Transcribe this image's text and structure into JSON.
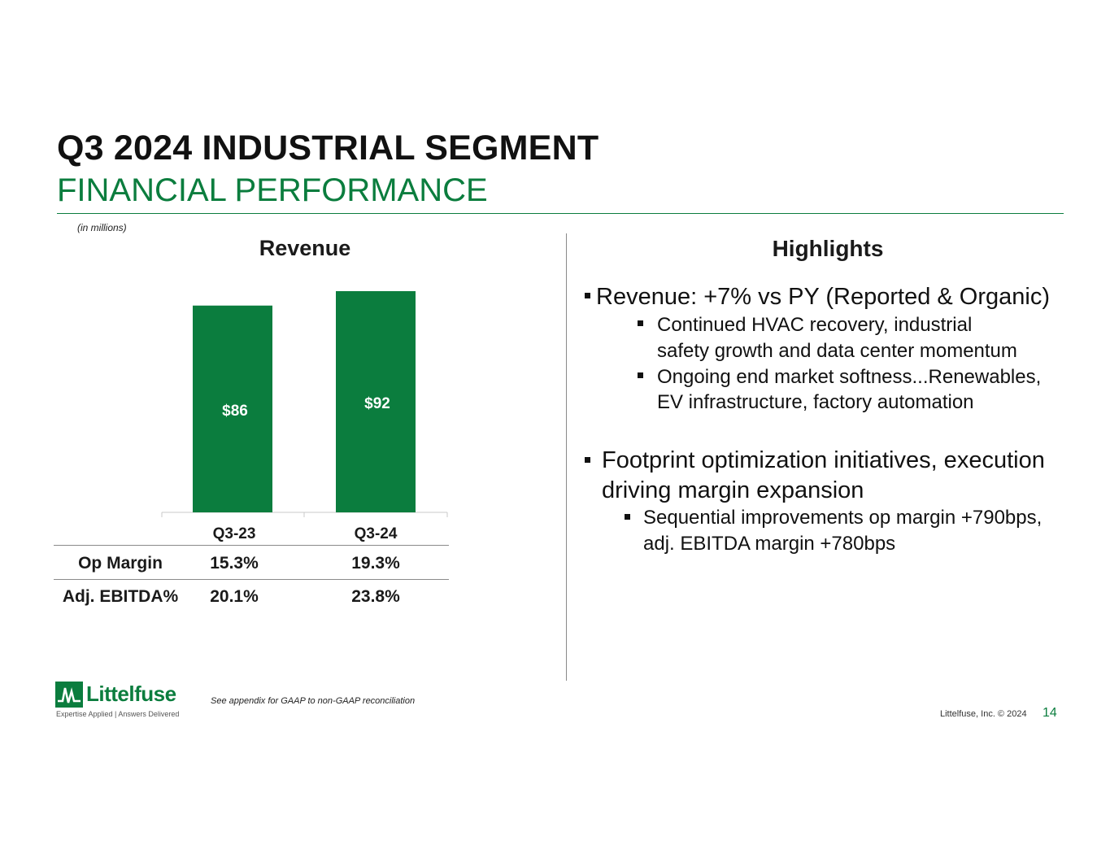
{
  "header": {
    "title": "Q3 2024 INDUSTRIAL SEGMENT",
    "subtitle": "FINANCIAL PERFORMANCE",
    "units_note": "(in millions)"
  },
  "chart_data": {
    "type": "bar",
    "title": "Revenue",
    "categories": [
      "Q3-23",
      "Q3-24"
    ],
    "values": [
      86,
      92
    ],
    "data_labels": [
      "$86",
      "$92"
    ],
    "ylabel": "",
    "xlabel": "",
    "ylim": [
      0,
      100
    ],
    "grid": false,
    "bar_color": "#0b7d3e"
  },
  "metrics_table": {
    "rows": [
      {
        "label": "Op Margin",
        "values": [
          "15.3%",
          "19.3%"
        ]
      },
      {
        "label": "Adj. EBITDA%",
        "values": [
          "20.1%",
          "23.8%"
        ]
      }
    ]
  },
  "highlights": {
    "title": "Highlights",
    "bullets": [
      {
        "text": "Revenue: +7% vs PY (Reported & Organic)",
        "sub": [
          [
            "Continued HVAC recovery, industrial",
            "safety growth and data center momentum"
          ],
          [
            "Ongoing end market softness...Renewables,",
            "EV infrastructure, factory automation"
          ]
        ]
      },
      {
        "lines": [
          "Footprint optimization initiatives, execution",
          "driving margin expansion"
        ],
        "sub": [
          [
            "Sequential improvements op margin +790bps,",
            "adj. EBITDA margin +780bps"
          ]
        ]
      }
    ]
  },
  "footer": {
    "logo_name": "Littelfuse",
    "logo_tagline": "Expertise Applied | Answers Delivered",
    "footnote": "See appendix for GAAP to non-GAAP reconciliation",
    "copyright": "Littelfuse, Inc. © 2024",
    "page_number": "14"
  },
  "colors": {
    "brand_green": "#0b7d3e"
  }
}
